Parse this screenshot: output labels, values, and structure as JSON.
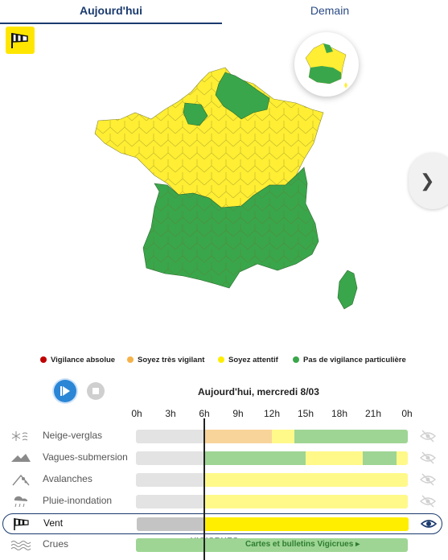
{
  "tabs": [
    {
      "label": "Aujourd'hui",
      "active": true
    },
    {
      "label": "Demain",
      "active": false
    }
  ],
  "badge_icon": "windsock-icon",
  "next_icon": "chevron-right-icon",
  "legend": [
    {
      "label": "Vigilance absolue",
      "color": "#c00000"
    },
    {
      "label": "Soyez très vigilant",
      "color": "#f6b24a"
    },
    {
      "label": "Soyez attentif",
      "color": "#ffee00"
    },
    {
      "label": "Pas de vigilance particulière",
      "color": "#3aa64b"
    }
  ],
  "controls": {
    "play_icon": "play-icon",
    "stop_icon": "stop-icon"
  },
  "timeline": {
    "title": "Aujourd'hui, mercredi 8/03",
    "hours": [
      "0h",
      "3h",
      "6h",
      "9h",
      "12h",
      "15h",
      "18h",
      "21h",
      "0h"
    ],
    "current_hour": "6h"
  },
  "colors": {
    "past": "#e3e3e3",
    "orange": "#f8d49a",
    "yellow": "#fff98a",
    "green": "#9ed594",
    "vent_yellow": "#ffee00",
    "vent_past": "#c4c4c4",
    "crues_green": "#9ed594"
  },
  "rows": [
    {
      "label": "Neige-verglas",
      "icon": "snowflake-icon",
      "selected": false,
      "segments": [
        [
          "orange",
          6,
          12
        ],
        [
          "yellow",
          12,
          14
        ],
        [
          "green",
          14,
          24
        ]
      ]
    },
    {
      "label": "Vagues-submersion",
      "icon": "wave-icon",
      "selected": false,
      "segments": [
        [
          "green",
          6,
          15
        ],
        [
          "yellow",
          15,
          20
        ],
        [
          "green",
          20,
          23
        ],
        [
          "yellow",
          23,
          24
        ]
      ]
    },
    {
      "label": "Avalanches",
      "icon": "avalanche-icon",
      "selected": false,
      "segments": [
        [
          "yellow",
          6,
          24
        ]
      ]
    },
    {
      "label": "Pluie-inondation",
      "icon": "rain-icon",
      "selected": false,
      "segments": [
        [
          "yellow",
          6,
          24
        ]
      ]
    },
    {
      "label": "Vent",
      "icon": "windsock-icon",
      "selected": true,
      "segments": [
        [
          "vent_yellow",
          6,
          24
        ]
      ]
    },
    {
      "label": "Crues",
      "icon": "flood-icon",
      "selected": false,
      "segments": [
        [
          "crues_green",
          0,
          24
        ]
      ]
    }
  ],
  "crues": {
    "logo": "VIGICRUES",
    "link": "Cartes et bulletins Vigicrues ▸"
  }
}
